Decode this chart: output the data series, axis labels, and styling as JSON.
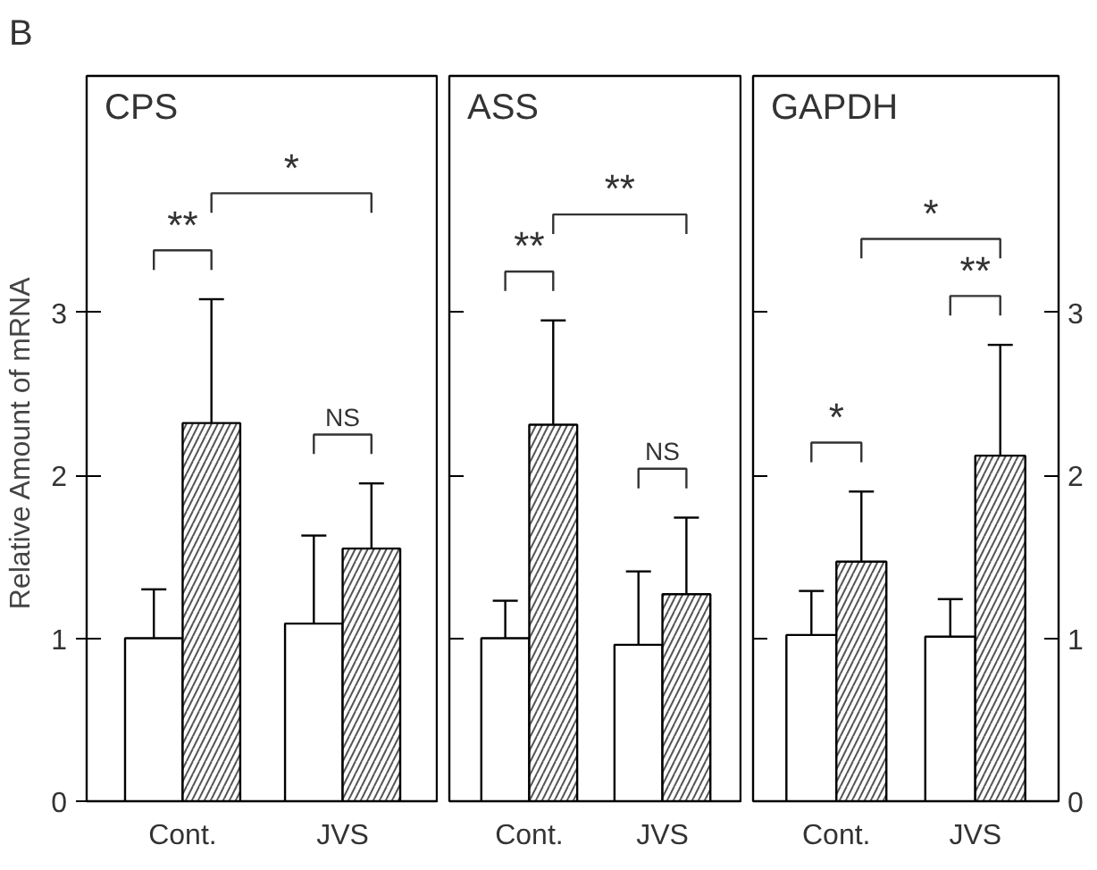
{
  "chart_data": [
    {
      "type": "bar",
      "title": "CPS",
      "categories": [
        "Cont.",
        "JVS"
      ],
      "ylabel": "Relative Amount of  mRNA",
      "ylim": [
        0,
        4.45
      ],
      "yticks": [
        0,
        1,
        2,
        3
      ],
      "series": [
        {
          "color": "#ffffff",
          "values": [
            1.0,
            1.09
          ],
          "errors": [
            [
              1.0,
              1.3
            ],
            [
              1.09,
              1.63
            ]
          ]
        },
        {
          "color": "#ffffff",
          "values": [
            2.32,
            1.55
          ],
          "errors": [
            [
              2.32,
              3.08
            ],
            [
              1.55,
              1.95
            ]
          ]
        }
      ],
      "annotations": [
        "B",
        "**",
        "NS",
        "*"
      ]
    },
    {
      "type": "bar",
      "title": "ASS",
      "categories": [
        "Cont.",
        "JVS"
      ],
      "ylim": [
        0,
        4.45
      ],
      "yticks": [
        0,
        1,
        2,
        3
      ],
      "tick_labels": "x",
      "series": [
        {
          "color": "#ffffff",
          "values": [
            1.0,
            0.96
          ],
          "errors": [
            [
              1.0,
              1.23
            ],
            [
              0.96,
              1.41
            ]
          ]
        },
        {
          "color": "#ffffff",
          "values": [
            2.31,
            1.27
          ],
          "errors": [
            [
              2.31,
              2.95
            ],
            [
              1.27,
              1.74
            ]
          ]
        }
      ],
      "annotations": [
        "**",
        "NS",
        "**"
      ]
    },
    {
      "type": "bar",
      "title": "GAPDH",
      "categories": [
        "Cont.",
        "JVS"
      ],
      "y2lim": [
        0,
        4.45
      ],
      "y2ticks": [
        0,
        1,
        2,
        3
      ],
      "series": [
        {
          "color": "#ffffff",
          "axis": "y2",
          "values": [
            1.02,
            1.01
          ],
          "errors": [
            [
              1.02,
              1.29
            ],
            [
              1.01,
              1.24
            ]
          ]
        },
        {
          "color": "#ffffff",
          "axis": "y2",
          "values": [
            1.47,
            2.12
          ],
          "errors": [
            [
              1.47,
              1.9
            ],
            [
              2.12,
              2.8
            ]
          ]
        }
      ],
      "annotations": [
        "*",
        "**",
        "*"
      ]
    }
  ]
}
